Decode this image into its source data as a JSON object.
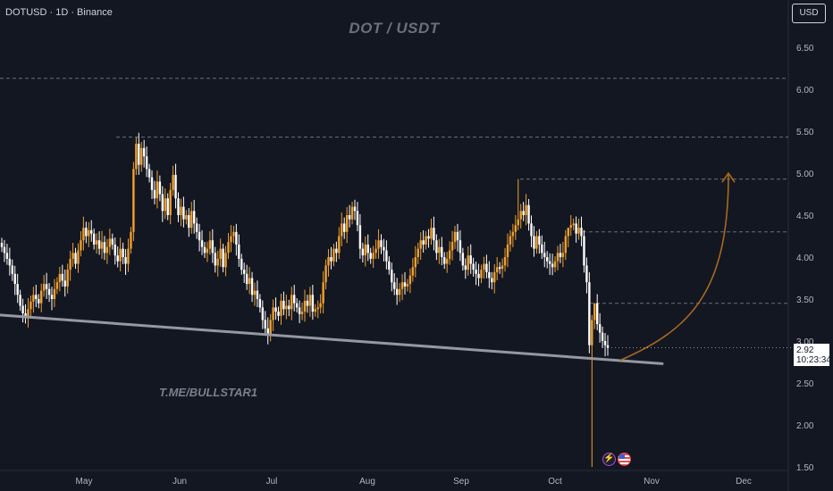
{
  "header": {
    "symbol_info": "DOTUSD · 1D · Binance",
    "currency": "USD",
    "title": "DOT / USDT"
  },
  "watermark": "T.ME/BULLSTAR1",
  "price_label": {
    "price": "2.92",
    "countdown": "10:23:34"
  },
  "colors": {
    "background": "#131722",
    "up_candle": "#f0a02c",
    "down_candle": "#ffffff",
    "support_line": "#9598a1",
    "projection_arrow": "#a8691e",
    "dashed_levels": "#6b6f7a"
  },
  "events": [
    "lightning-icon",
    "us-flag-icon"
  ],
  "chart_data": {
    "type": "candlestick",
    "title": "DOT / USDT",
    "x_ticks": [
      "May",
      "Jun",
      "Jul",
      "Aug",
      "Sep",
      "Oct",
      "Nov",
      "Dec"
    ],
    "y_ticks": [
      "1.50",
      "2.00",
      "2.50",
      "3.00",
      "3.50",
      "4.00",
      "4.50",
      "5.00",
      "5.50",
      "6.00",
      "6.50"
    ],
    "ylim": [
      1.5,
      6.9
    ],
    "closes": [
      4.12,
      4.05,
      3.98,
      3.9,
      3.8,
      3.68,
      3.55,
      3.42,
      3.33,
      3.28,
      3.38,
      3.47,
      3.55,
      3.5,
      3.45,
      3.6,
      3.68,
      3.62,
      3.55,
      3.5,
      3.62,
      3.7,
      3.8,
      3.72,
      3.65,
      3.85,
      3.98,
      4.05,
      3.92,
      4.08,
      4.2,
      4.35,
      4.25,
      4.32,
      4.28,
      4.15,
      4.2,
      4.1,
      4.18,
      4.05,
      4.12,
      4.22,
      4.15,
      4.02,
      3.95,
      4.1,
      4.0,
      3.92,
      4.1,
      4.3,
      5.05,
      5.35,
      5.1,
      5.3,
      5.2,
      5.05,
      4.95,
      4.8,
      4.7,
      4.9,
      4.75,
      4.55,
      4.7,
      4.5,
      4.8,
      4.98,
      4.7,
      4.5,
      4.6,
      4.45,
      4.5,
      4.35,
      4.55,
      4.4,
      4.3,
      4.2,
      4.12,
      4.05,
      4.1,
      4.2,
      4.05,
      3.9,
      3.98,
      4.1,
      3.88,
      4.05,
      4.18,
      4.25,
      4.3,
      4.15,
      3.98,
      3.85,
      3.8,
      3.68,
      3.75,
      3.55,
      3.6,
      3.5,
      3.4,
      3.25,
      3.15,
      3.08,
      3.25,
      3.4,
      3.35,
      3.3,
      3.48,
      3.38,
      3.42,
      3.38,
      3.55,
      3.45,
      3.4,
      3.32,
      3.35,
      3.48,
      3.42,
      3.55,
      3.35,
      3.38,
      3.4,
      3.45,
      3.7,
      3.9,
      4.0,
      3.95,
      4.1,
      4.05,
      4.25,
      4.4,
      4.3,
      4.5,
      4.45,
      4.6,
      4.55,
      4.38,
      4.1,
      4.02,
      4.15,
      4.05,
      3.98,
      4.05,
      4.1,
      4.2,
      4.12,
      4.08,
      3.95,
      3.85,
      3.7,
      3.62,
      3.55,
      3.62,
      3.7,
      3.65,
      3.68,
      3.78,
      3.88,
      4.0,
      4.1,
      4.2,
      4.15,
      4.25,
      4.22,
      4.35,
      4.2,
      4.05,
      4.12,
      4.0,
      3.92,
      3.98,
      4.08,
      4.18,
      4.3,
      4.2,
      4.05,
      3.9,
      3.85,
      4.02,
      3.92,
      3.85,
      3.8,
      3.75,
      3.85,
      3.92,
      3.82,
      3.75,
      3.7,
      3.82,
      3.88,
      3.86,
      3.9,
      4.0,
      4.15,
      4.25,
      4.3,
      4.38,
      4.45,
      4.55,
      4.5,
      4.62,
      4.4,
      4.25,
      4.1,
      4.25,
      4.15,
      4.05,
      4.0,
      3.95,
      3.92,
      3.88,
      3.95,
      4.05,
      4.0,
      4.05,
      4.25,
      4.35,
      4.38,
      4.4,
      4.28,
      4.35,
      4.25,
      3.9,
      3.7,
      2.95,
      3.25,
      3.45,
      3.2,
      3.1,
      3.0,
      2.95,
      2.92
    ],
    "support_line": {
      "from": [
        3.31,
        "start"
      ],
      "to": [
        2.73,
        "late Oct"
      ]
    },
    "dashed_levels": [
      6.13,
      5.43,
      4.93,
      4.3,
      3.45
    ],
    "projection_target": 5.0
  }
}
